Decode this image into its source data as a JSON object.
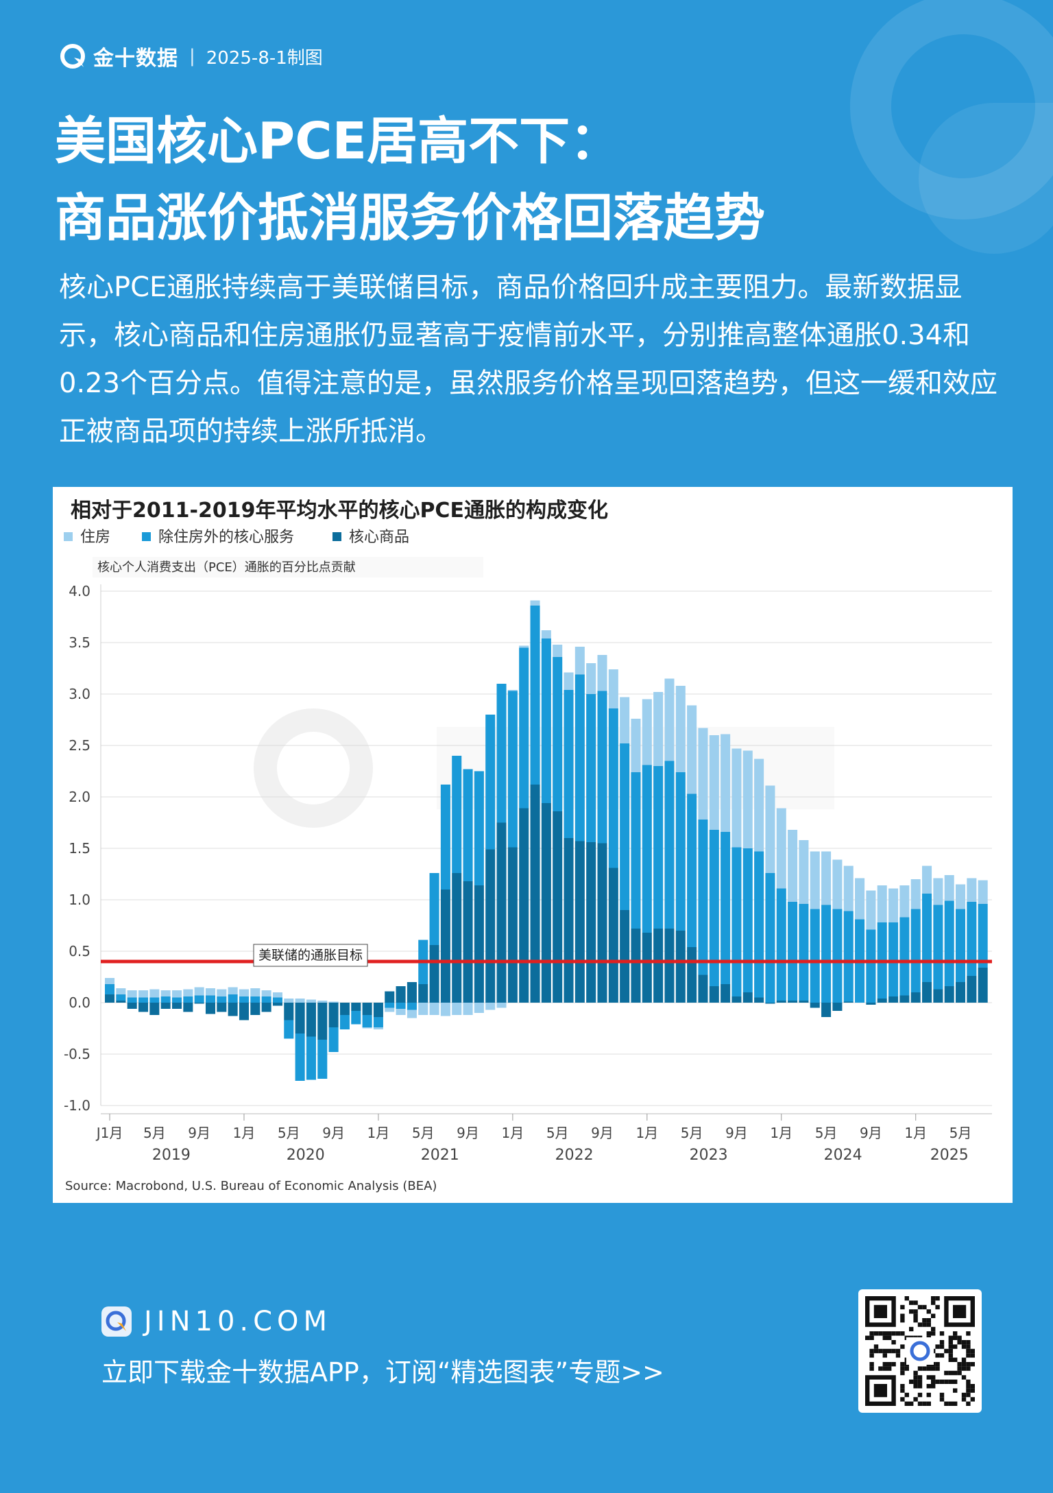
{
  "header": {
    "brand_name": "金十数据",
    "date_label": "2025-8-1制图"
  },
  "title": {
    "line1": "美国核心PCE居高不下：",
    "line2": "商品涨价抵消服务价格回落趋势"
  },
  "subtitle": "核心PCE通胀持续高于美联储目标，商品价格回升成主要阻力。最新数据显示，核心商品和住房通胀仍显著高于疫情前水平，分别推高整体通胀0.34和0.23个百分点。值得注意的是，虽然服务价格呈现回落趋势，但这一缓和效应正被商品项的持续上涨所抵消。",
  "footer": {
    "site": "JIN10.COM",
    "cta": "立即下载金十数据APP，订阅“精选图表”专题>>"
  },
  "colors": {
    "background": "#2b98d8",
    "housing": "#9dcfee",
    "services": "#1a9ad8",
    "goods": "#0c6d9c",
    "target_line": "#e02020"
  },
  "chart_data": {
    "type": "bar",
    "stacked": true,
    "title": "相对于2011-2019年平均水平的核心PCE通胀的构成变化",
    "ylabel": "核心个人消费支出（PCE）通胀的百分比点贡献",
    "source": "Source: Macrobond, U.S. Bureau of Economic Analysis (BEA)",
    "ylim": [
      -1.0,
      4.0
    ],
    "yticks": [
      "4.0",
      "3.5",
      "3.0",
      "2.5",
      "2.0",
      "1.5",
      "1.0",
      "0.5",
      "0.0",
      "-0.5",
      "-1.0"
    ],
    "grid": true,
    "legend_position": "top-left",
    "x_tick_labels": [
      {
        "index": 0,
        "label": "J1月"
      },
      {
        "index": 4,
        "label": "5月"
      },
      {
        "index": 8,
        "label": "9月"
      },
      {
        "index": 12,
        "label": "1月"
      },
      {
        "index": 16,
        "label": "5月"
      },
      {
        "index": 20,
        "label": "9月"
      },
      {
        "index": 24,
        "label": "1月"
      },
      {
        "index": 28,
        "label": "5月"
      },
      {
        "index": 32,
        "label": "9月"
      },
      {
        "index": 36,
        "label": "1月"
      },
      {
        "index": 40,
        "label": "5月"
      },
      {
        "index": 44,
        "label": "9月"
      },
      {
        "index": 48,
        "label": "1月"
      },
      {
        "index": 52,
        "label": "5月"
      },
      {
        "index": 56,
        "label": "9月"
      },
      {
        "index": 60,
        "label": "1月"
      },
      {
        "index": 64,
        "label": "5月"
      },
      {
        "index": 68,
        "label": "9月"
      },
      {
        "index": 72,
        "label": "1月"
      },
      {
        "index": 76,
        "label": "5月"
      }
    ],
    "year_labels": [
      {
        "index": 5.5,
        "label": "2019"
      },
      {
        "index": 17.5,
        "label": "2020"
      },
      {
        "index": 29.5,
        "label": "2021"
      },
      {
        "index": 41.5,
        "label": "2022"
      },
      {
        "index": 53.5,
        "label": "2023"
      },
      {
        "index": 65.5,
        "label": "2024"
      },
      {
        "index": 75,
        "label": "2025"
      }
    ],
    "annotation": {
      "label": "美联储的通胀目标",
      "value": 0.4
    },
    "series": [
      {
        "name": "住房",
        "values": [
          0.06,
          0.06,
          0.07,
          0.07,
          0.08,
          0.06,
          0.07,
          0.07,
          0.08,
          0.07,
          0.07,
          0.07,
          0.07,
          0.08,
          0.06,
          0.05,
          0.04,
          0.04,
          0.03,
          0.02,
          0.01,
          0.0,
          0.0,
          -0.01,
          -0.02,
          -0.04,
          -0.06,
          -0.08,
          -0.12,
          -0.12,
          -0.13,
          -0.12,
          -0.12,
          -0.1,
          -0.07,
          -0.05,
          0.01,
          0.02,
          0.05,
          0.08,
          0.12,
          0.17,
          0.27,
          0.3,
          0.35,
          0.38,
          0.45,
          0.52,
          0.64,
          0.72,
          0.8,
          0.84,
          0.86,
          0.89,
          0.92,
          0.95,
          0.96,
          0.95,
          0.9,
          0.85,
          0.78,
          0.7,
          0.62,
          0.56,
          0.52,
          0.48,
          0.44,
          0.4,
          0.38,
          0.36,
          0.33,
          0.31,
          0.29,
          0.27,
          0.26,
          0.25,
          0.24,
          0.23,
          0.23
        ]
      },
      {
        "name": "除住房外的核心服务",
        "values": [
          0.1,
          0.06,
          0.05,
          0.05,
          0.05,
          0.06,
          0.05,
          0.06,
          0.07,
          0.07,
          0.06,
          0.08,
          0.06,
          0.06,
          0.06,
          0.05,
          -0.18,
          -0.46,
          -0.42,
          -0.38,
          -0.24,
          -0.14,
          -0.13,
          -0.12,
          -0.1,
          -0.05,
          -0.06,
          -0.07,
          0.43,
          0.7,
          1.02,
          1.14,
          1.09,
          1.11,
          1.31,
          1.35,
          1.52,
          1.56,
          1.74,
          1.6,
          1.5,
          1.44,
          1.62,
          1.44,
          1.48,
          1.55,
          1.62,
          1.52,
          1.63,
          1.58,
          1.63,
          1.54,
          1.49,
          1.51,
          1.52,
          1.48,
          1.45,
          1.4,
          1.42,
          1.26,
          1.09,
          0.96,
          0.94,
          0.91,
          0.95,
          0.91,
          0.88,
          0.81,
          0.71,
          0.74,
          0.72,
          0.76,
          0.81,
          0.86,
          0.82,
          0.83,
          0.71,
          0.72,
          0.62
        ]
      },
      {
        "name": "核心商品",
        "values": [
          0.08,
          0.02,
          -0.06,
          -0.09,
          -0.12,
          -0.06,
          -0.06,
          -0.09,
          -0.01,
          -0.11,
          -0.09,
          -0.13,
          -0.17,
          -0.12,
          -0.09,
          -0.03,
          -0.17,
          -0.3,
          -0.33,
          -0.36,
          -0.24,
          -0.12,
          -0.08,
          -0.12,
          -0.14,
          0.11,
          0.16,
          0.2,
          0.18,
          0.56,
          1.1,
          1.26,
          1.18,
          1.14,
          1.49,
          1.75,
          1.51,
          1.89,
          2.12,
          1.94,
          1.86,
          1.6,
          1.57,
          1.56,
          1.55,
          1.31,
          0.9,
          0.72,
          0.68,
          0.72,
          0.72,
          0.7,
          0.54,
          0.27,
          0.16,
          0.18,
          0.06,
          0.1,
          0.05,
          -0.01,
          0.02,
          0.02,
          0.02,
          -0.05,
          -0.14,
          -0.08,
          0.01,
          0.0,
          -0.02,
          0.04,
          0.06,
          0.07,
          0.1,
          0.2,
          0.13,
          0.16,
          0.2,
          0.26,
          0.34
        ]
      }
    ]
  }
}
